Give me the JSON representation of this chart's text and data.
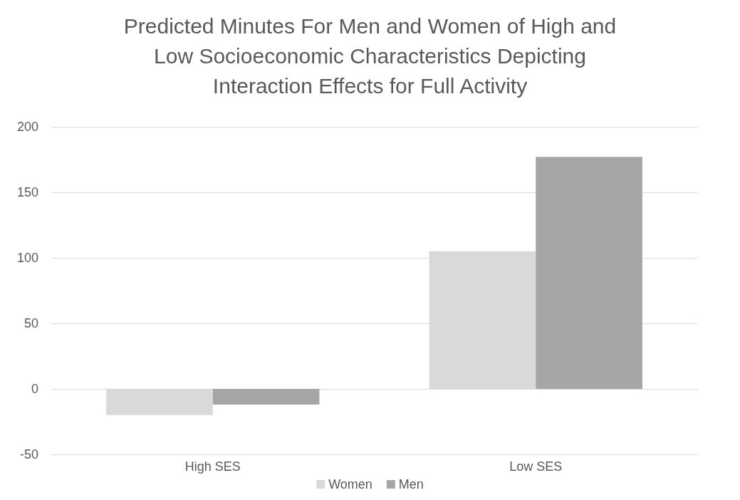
{
  "chart_data": {
    "type": "bar",
    "title": "Predicted Minutes For Men and Women of High and\nLow Socioeconomic Characteristics Depicting\nInteraction Effects for Full Activity",
    "categories": [
      "High SES",
      "Low SES"
    ],
    "series": [
      {
        "name": "Women",
        "color": "#d9d9d9",
        "values": [
          -20,
          105
        ]
      },
      {
        "name": "Men",
        "color": "#a6a6a6",
        "values": [
          -12,
          177
        ]
      }
    ],
    "ylim": [
      -50,
      200
    ],
    "yticks": [
      -50,
      0,
      50,
      100,
      150,
      200
    ],
    "grid": "y",
    "legend": "bottom"
  }
}
